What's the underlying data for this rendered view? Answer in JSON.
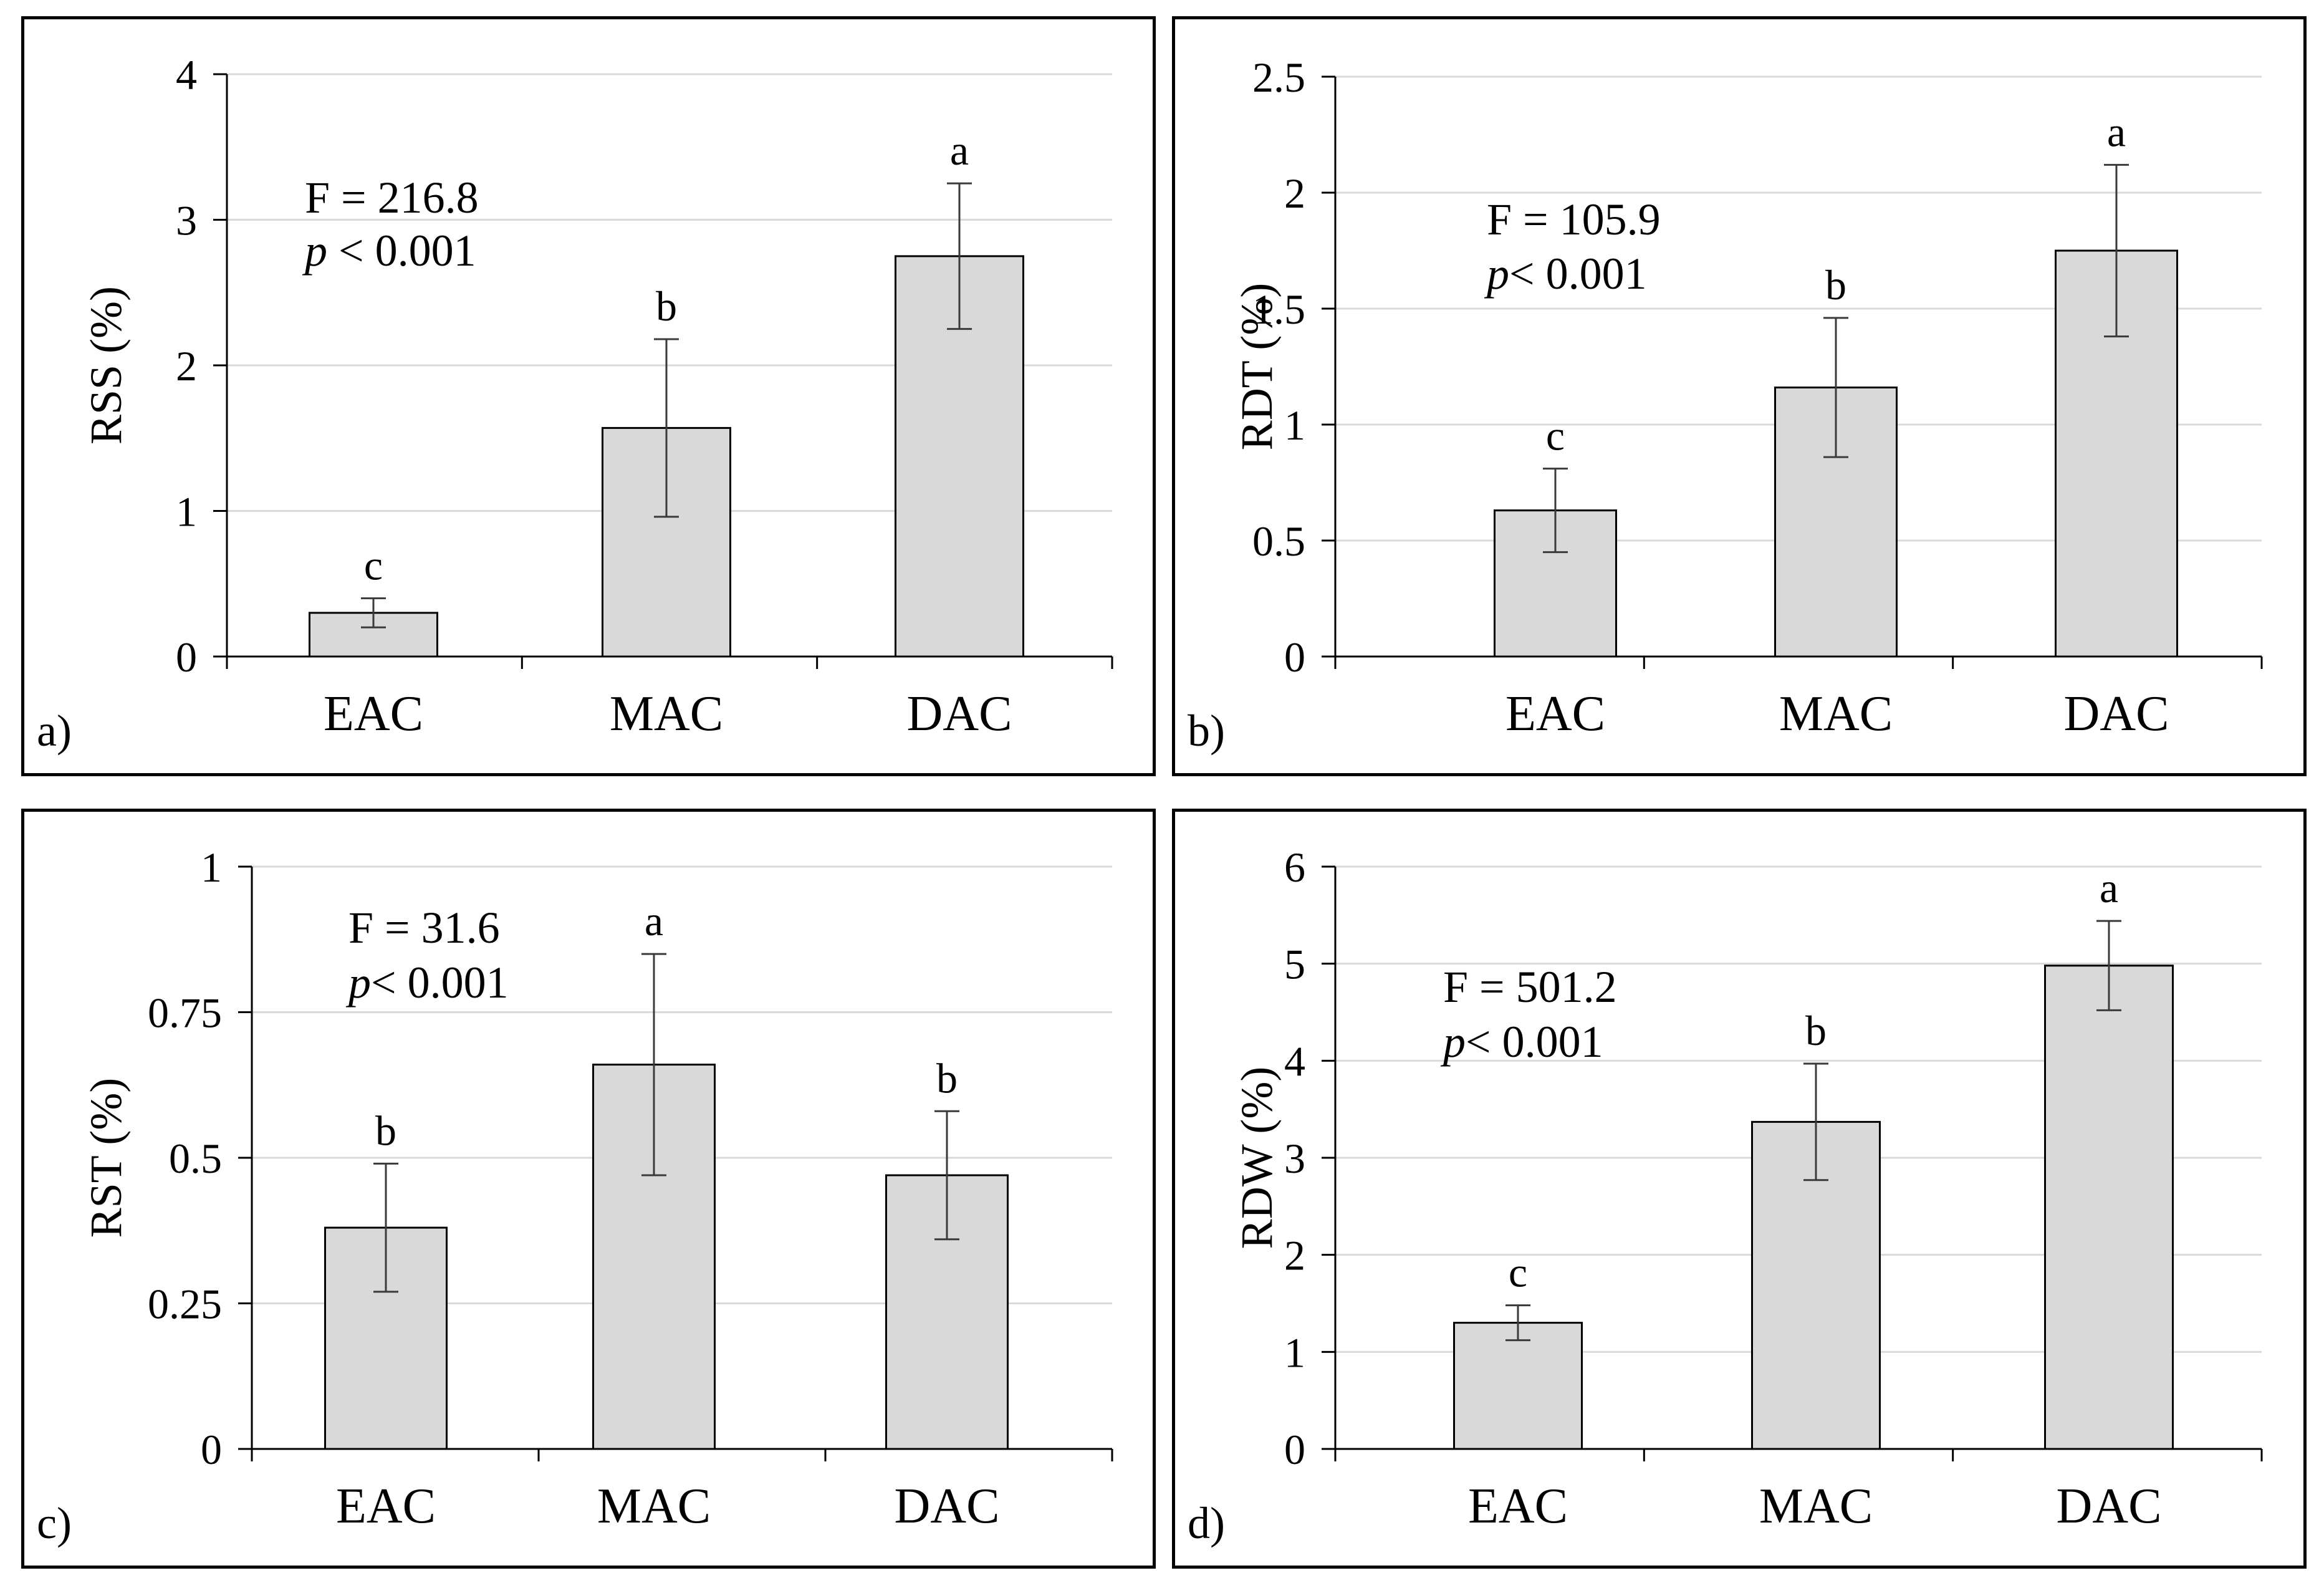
{
  "chart_data": [
    {
      "type": "bar",
      "panel_label": "a)",
      "ylabel": "RSS (%)",
      "categories": [
        "EAC",
        "MAC",
        "DAC"
      ],
      "values": [
        0.3,
        1.57,
        2.75
      ],
      "errors": [
        0.1,
        0.61,
        0.5
      ],
      "letters": [
        "c",
        "b",
        "a"
      ],
      "ylim": [
        0,
        4
      ],
      "yticks": [
        0,
        1,
        2,
        3,
        4
      ],
      "ytick_labels": [
        "0",
        "1",
        "2",
        "3",
        "4"
      ],
      "grid": true,
      "stat_f": "F = 216.8",
      "stat_p_italic": "p",
      "stat_p_rest": " < 0.001"
    },
    {
      "type": "bar",
      "panel_label": "b)",
      "ylabel": "RDT (%)",
      "categories": [
        "EAC",
        "MAC",
        "DAC"
      ],
      "values": [
        0.63,
        1.16,
        1.75
      ],
      "errors": [
        0.18,
        0.3,
        0.37
      ],
      "letters": [
        "c",
        "b",
        "a"
      ],
      "ylim": [
        0,
        2.5
      ],
      "yticks": [
        0,
        0.5,
        1,
        1.5,
        2,
        2.5
      ],
      "ytick_labels": [
        "0",
        "0.5",
        "1",
        "1.5",
        "2",
        "2.5"
      ],
      "grid": true,
      "stat_f": "F = 105.9",
      "stat_p_italic": "p",
      "stat_p_rest": "< 0.001"
    },
    {
      "type": "bar",
      "panel_label": "c)",
      "ylabel": "RST (%)",
      "categories": [
        "EAC",
        "MAC",
        "DAC"
      ],
      "values": [
        0.38,
        0.66,
        0.47
      ],
      "errors": [
        0.11,
        0.19,
        0.11
      ],
      "letters": [
        "b",
        "a",
        "b"
      ],
      "ylim": [
        0,
        1
      ],
      "yticks": [
        0,
        0.25,
        0.5,
        0.75,
        1
      ],
      "ytick_labels": [
        "0",
        "0.25",
        "0.5",
        "0.75",
        "1"
      ],
      "grid": true,
      "stat_f": "F = 31.6",
      "stat_p_italic": "p",
      "stat_p_rest": "< 0.001"
    },
    {
      "type": "bar",
      "panel_label": "d)",
      "ylabel": "RDW (%)",
      "categories": [
        "EAC",
        "MAC",
        "DAC"
      ],
      "values": [
        1.3,
        3.37,
        4.98
      ],
      "errors": [
        0.18,
        0.6,
        0.46
      ],
      "letters": [
        "c",
        "b",
        "a"
      ],
      "ylim": [
        0,
        6
      ],
      "yticks": [
        0,
        1,
        2,
        3,
        4,
        5,
        6
      ],
      "ytick_labels": [
        "0",
        "1",
        "2",
        "3",
        "4",
        "5",
        "6"
      ],
      "grid": true,
      "stat_f": "F = 501.2",
      "stat_p_italic": "p",
      "stat_p_rest": "< 0.001"
    }
  ],
  "colors": {
    "bar_fill": "#d9d9d9",
    "bar_stroke": "#000000",
    "grid": "#d9d9d9",
    "axis": "#000000",
    "error_bar": "#3a3a3a"
  }
}
